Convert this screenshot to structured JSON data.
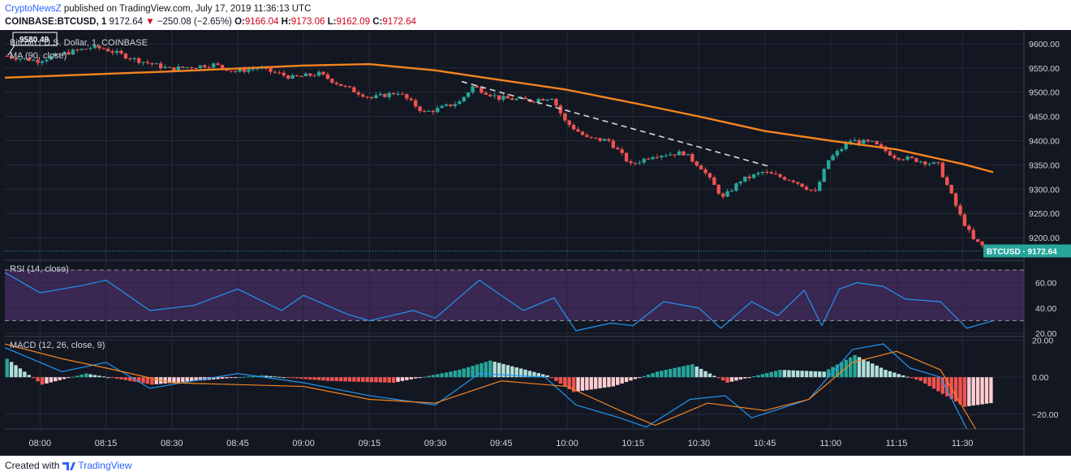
{
  "header": {
    "author": "CryptoNewsZ",
    "published": "published on TradingView.com, July 17, 2019 11:36:13 UTC",
    "symbol": "COINBASE:BTCUSD, 1",
    "last": "9172.64",
    "arrow": "▼",
    "change": "−250.08 (−2.65%)",
    "o_label": "O:",
    "o_value": "9166.04",
    "h_label": "H:",
    "h_value": "9173.06",
    "l_label": "L:",
    "l_value": "9162.09",
    "c_label": "C:",
    "c_value": "9172.64"
  },
  "footer": {
    "created_with": "Created with",
    "brand": "TradingView"
  },
  "chart_data": [
    {
      "type": "candlestick",
      "title": "Bitcoin / U.S. Dollar, 1, COINBASE",
      "indicator_label": "MA (90, close)",
      "high_marker": "9580.49",
      "price_tag": "BTCUSD · 9172.64",
      "x_ticks": [
        "08:00",
        "08:15",
        "08:30",
        "08:45",
        "09:00",
        "09:15",
        "09:30",
        "09:45",
        "10:00",
        "10:15",
        "10:30",
        "10:45",
        "11:00",
        "11:15",
        "11:30"
      ],
      "y_ticks": [
        "9600.00",
        "9550.00",
        "9500.00",
        "9450.00",
        "9400.00",
        "9350.00",
        "9300.00",
        "9250.00",
        "9200.00"
      ],
      "ylim": [
        9160,
        9625
      ],
      "x_range": [
        "07:52",
        "11:44"
      ],
      "ma_curve": [
        {
          "t": "07:52",
          "v": 9530
        },
        {
          "t": "08:30",
          "v": 9543
        },
        {
          "t": "09:00",
          "v": 9555
        },
        {
          "t": "09:15",
          "v": 9558
        },
        {
          "t": "09:30",
          "v": 9545
        },
        {
          "t": "09:45",
          "v": 9525
        },
        {
          "t": "10:00",
          "v": 9505
        },
        {
          "t": "10:15",
          "v": 9478
        },
        {
          "t": "10:30",
          "v": 9450
        },
        {
          "t": "10:45",
          "v": 9420
        },
        {
          "t": "11:00",
          "v": 9400
        },
        {
          "t": "11:15",
          "v": 9382
        },
        {
          "t": "11:30",
          "v": 9352
        },
        {
          "t": "11:37",
          "v": 9335
        }
      ],
      "trendline": [
        {
          "t": "09:36",
          "v": 9522
        },
        {
          "t": "10:46",
          "v": 9347
        }
      ],
      "price_path": [
        {
          "t": "07:52",
          "v": 9575
        },
        {
          "t": "08:00",
          "v": 9565
        },
        {
          "t": "08:06",
          "v": 9580
        },
        {
          "t": "08:12",
          "v": 9592
        },
        {
          "t": "08:15",
          "v": 9590
        },
        {
          "t": "08:22",
          "v": 9568
        },
        {
          "t": "08:30",
          "v": 9548
        },
        {
          "t": "08:40",
          "v": 9557
        },
        {
          "t": "08:45",
          "v": 9543
        },
        {
          "t": "08:50",
          "v": 9550
        },
        {
          "t": "08:58",
          "v": 9530
        },
        {
          "t": "09:04",
          "v": 9538
        },
        {
          "t": "09:10",
          "v": 9510
        },
        {
          "t": "09:16",
          "v": 9488
        },
        {
          "t": "09:22",
          "v": 9500
        },
        {
          "t": "09:28",
          "v": 9458
        },
        {
          "t": "09:31",
          "v": 9465
        },
        {
          "t": "09:36",
          "v": 9480
        },
        {
          "t": "09:39",
          "v": 9512
        },
        {
          "t": "09:45",
          "v": 9488
        },
        {
          "t": "09:52",
          "v": 9483
        },
        {
          "t": "09:57",
          "v": 9490
        },
        {
          "t": "10:00",
          "v": 9440
        },
        {
          "t": "10:05",
          "v": 9405
        },
        {
          "t": "10:10",
          "v": 9400
        },
        {
          "t": "10:15",
          "v": 9350
        },
        {
          "t": "10:20",
          "v": 9370
        },
        {
          "t": "10:27",
          "v": 9375
        },
        {
          "t": "10:31",
          "v": 9345
        },
        {
          "t": "10:36",
          "v": 9282
        },
        {
          "t": "10:40",
          "v": 9318
        },
        {
          "t": "10:45",
          "v": 9335
        },
        {
          "t": "10:52",
          "v": 9318
        },
        {
          "t": "10:57",
          "v": 9293
        },
        {
          "t": "11:00",
          "v": 9360
        },
        {
          "t": "11:05",
          "v": 9400
        },
        {
          "t": "11:10",
          "v": 9395
        },
        {
          "t": "11:15",
          "v": 9368
        },
        {
          "t": "11:20",
          "v": 9360
        },
        {
          "t": "11:25",
          "v": 9350
        },
        {
          "t": "11:30",
          "v": 9245
        },
        {
          "t": "11:33",
          "v": 9195
        },
        {
          "t": "11:37",
          "v": 9172
        }
      ]
    },
    {
      "type": "line",
      "title": "RSI (14, close)",
      "y_ticks": [
        "60.00",
        "40.00",
        "20.00"
      ],
      "bands": [
        30,
        70
      ],
      "ylim": [
        20,
        70
      ],
      "series": [
        {
          "points": [
            {
              "t": "07:52",
              "v": 68
            },
            {
              "t": "08:00",
              "v": 52
            },
            {
              "t": "08:10",
              "v": 58
            },
            {
              "t": "08:15",
              "v": 62
            },
            {
              "t": "08:25",
              "v": 38
            },
            {
              "t": "08:35",
              "v": 42
            },
            {
              "t": "08:45",
              "v": 55
            },
            {
              "t": "08:55",
              "v": 38
            },
            {
              "t": "09:00",
              "v": 50
            },
            {
              "t": "09:10",
              "v": 35
            },
            {
              "t": "09:15",
              "v": 30
            },
            {
              "t": "09:25",
              "v": 38
            },
            {
              "t": "09:30",
              "v": 32
            },
            {
              "t": "09:40",
              "v": 62
            },
            {
              "t": "09:50",
              "v": 38
            },
            {
              "t": "09:57",
              "v": 48
            },
            {
              "t": "10:02",
              "v": 22
            },
            {
              "t": "10:10",
              "v": 28
            },
            {
              "t": "10:15",
              "v": 26
            },
            {
              "t": "10:22",
              "v": 45
            },
            {
              "t": "10:30",
              "v": 40
            },
            {
              "t": "10:35",
              "v": 24
            },
            {
              "t": "10:42",
              "v": 45
            },
            {
              "t": "10:48",
              "v": 34
            },
            {
              "t": "10:54",
              "v": 54
            },
            {
              "t": "10:58",
              "v": 26
            },
            {
              "t": "11:02",
              "v": 55
            },
            {
              "t": "11:06",
              "v": 60
            },
            {
              "t": "11:12",
              "v": 57
            },
            {
              "t": "11:17",
              "v": 47
            },
            {
              "t": "11:25",
              "v": 45
            },
            {
              "t": "11:31",
              "v": 24
            },
            {
              "t": "11:34",
              "v": 27
            },
            {
              "t": "11:37",
              "v": 30
            }
          ]
        }
      ]
    },
    {
      "type": "line+histogram",
      "title": "MACD (12, 26, close, 9)",
      "y_ticks": [
        "20.00",
        "0.00",
        "−20.00"
      ],
      "ylim": [
        -28,
        22
      ],
      "series": [
        {
          "points": [
            {
              "t": "07:52",
              "v": 16
            },
            {
              "t": "08:05",
              "v": 3
            },
            {
              "t": "08:15",
              "v": 8
            },
            {
              "t": "08:25",
              "v": -6
            },
            {
              "t": "08:45",
              "v": 2
            },
            {
              "t": "09:00",
              "v": -3
            },
            {
              "t": "09:15",
              "v": -10
            },
            {
              "t": "09:30",
              "v": -15
            },
            {
              "t": "09:40",
              "v": 2
            },
            {
              "t": "09:55",
              "v": 0
            },
            {
              "t": "10:02",
              "v": -15
            },
            {
              "t": "10:12",
              "v": -22
            },
            {
              "t": "10:18",
              "v": -27
            },
            {
              "t": "10:28",
              "v": -12
            },
            {
              "t": "10:36",
              "v": -10
            },
            {
              "t": "10:42",
              "v": -22
            },
            {
              "t": "10:55",
              "v": -12
            },
            {
              "t": "11:05",
              "v": 15
            },
            {
              "t": "11:12",
              "v": 18
            },
            {
              "t": "11:18",
              "v": 5
            },
            {
              "t": "11:25",
              "v": 0
            },
            {
              "t": "11:31",
              "v": -28
            }
          ]
        },
        {
          "points": [
            {
              "t": "07:52",
              "v": 18
            },
            {
              "t": "08:05",
              "v": 10
            },
            {
              "t": "08:15",
              "v": 5
            },
            {
              "t": "08:30",
              "v": -3
            },
            {
              "t": "09:00",
              "v": -5
            },
            {
              "t": "09:15",
              "v": -12
            },
            {
              "t": "09:30",
              "v": -14
            },
            {
              "t": "09:45",
              "v": -2
            },
            {
              "t": "10:00",
              "v": -5
            },
            {
              "t": "10:12",
              "v": -18
            },
            {
              "t": "10:20",
              "v": -26
            },
            {
              "t": "10:32",
              "v": -14
            },
            {
              "t": "10:45",
              "v": -18
            },
            {
              "t": "10:55",
              "v": -12
            },
            {
              "t": "11:05",
              "v": 8
            },
            {
              "t": "11:15",
              "v": 14
            },
            {
              "t": "11:25",
              "v": 4
            },
            {
              "t": "11:33",
              "v": -28
            }
          ]
        }
      ],
      "histogram": [
        {
          "t": "07:52",
          "v": 10
        },
        {
          "t": "08:00",
          "v": -4
        },
        {
          "t": "08:10",
          "v": 2
        },
        {
          "t": "08:25",
          "v": -4
        },
        {
          "t": "08:50",
          "v": 1
        },
        {
          "t": "09:05",
          "v": -2
        },
        {
          "t": "09:20",
          "v": -3
        },
        {
          "t": "09:35",
          "v": 4
        },
        {
          "t": "09:42",
          "v": 9
        },
        {
          "t": "09:55",
          "v": 1
        },
        {
          "t": "10:01",
          "v": -8
        },
        {
          "t": "10:10",
          "v": -5
        },
        {
          "t": "10:20",
          "v": 3
        },
        {
          "t": "10:28",
          "v": 7
        },
        {
          "t": "10:36",
          "v": -3
        },
        {
          "t": "10:48",
          "v": 4
        },
        {
          "t": "10:58",
          "v": 3
        },
        {
          "t": "11:05",
          "v": 12
        },
        {
          "t": "11:12",
          "v": 4
        },
        {
          "t": "11:20",
          "v": -2
        },
        {
          "t": "11:30",
          "v": -16
        },
        {
          "t": "11:36",
          "v": -14
        }
      ]
    }
  ]
}
